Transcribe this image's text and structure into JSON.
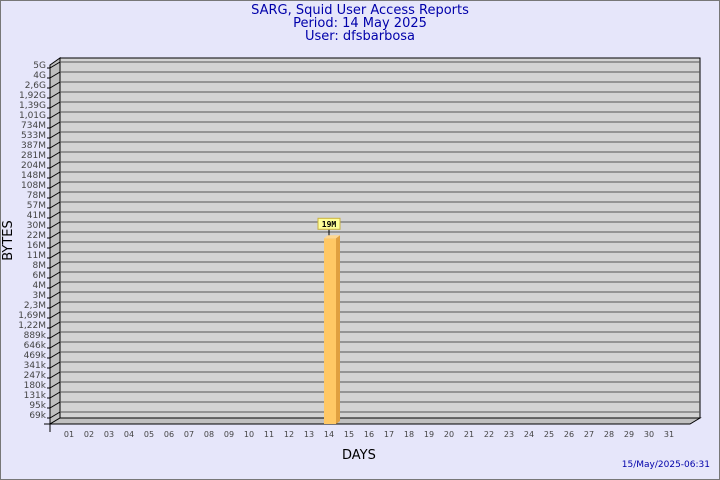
{
  "chart_data": {
    "type": "bar",
    "title": "SARG, Squid User Access Reports",
    "subtitle": [
      "Period: 14 May 2025",
      "User: dfsbarbosa"
    ],
    "xlabel": "DAYS",
    "ylabel": "BYTES",
    "y_scale": "log",
    "y_tick_labels": [
      "69k",
      "95k",
      "131k",
      "180k",
      "247k",
      "341k",
      "469k",
      "646k",
      "889k",
      "1,22M",
      "1,69M",
      "2,3M",
      "3M",
      "4M",
      "6M",
      "8M",
      "11M",
      "16M",
      "22M",
      "30M",
      "41M",
      "57M",
      "78M",
      "108M",
      "148M",
      "204M",
      "281M",
      "387M",
      "533M",
      "734M",
      "1,01G",
      "1,39G",
      "1,92G",
      "2,6G",
      "4G",
      "5G"
    ],
    "categories": [
      "01",
      "02",
      "03",
      "04",
      "05",
      "06",
      "07",
      "08",
      "09",
      "10",
      "11",
      "12",
      "13",
      "14",
      "15",
      "16",
      "17",
      "18",
      "19",
      "20",
      "21",
      "22",
      "23",
      "24",
      "25",
      "26",
      "27",
      "28",
      "29",
      "30",
      "31"
    ],
    "bars": [
      {
        "day": "14",
        "value_bytes": 19000000,
        "label": "19M"
      }
    ],
    "grid": true,
    "colors": {
      "bar": "#ffc865",
      "bar_side": "#e0a040",
      "panel": "#d3d3d3",
      "wall": "#c0c0c0",
      "background": "#e6e6fa",
      "title": "#0000aa",
      "label_box": "#ffff99"
    }
  },
  "footer": {
    "timestamp": "15/May/2025-06:31"
  }
}
